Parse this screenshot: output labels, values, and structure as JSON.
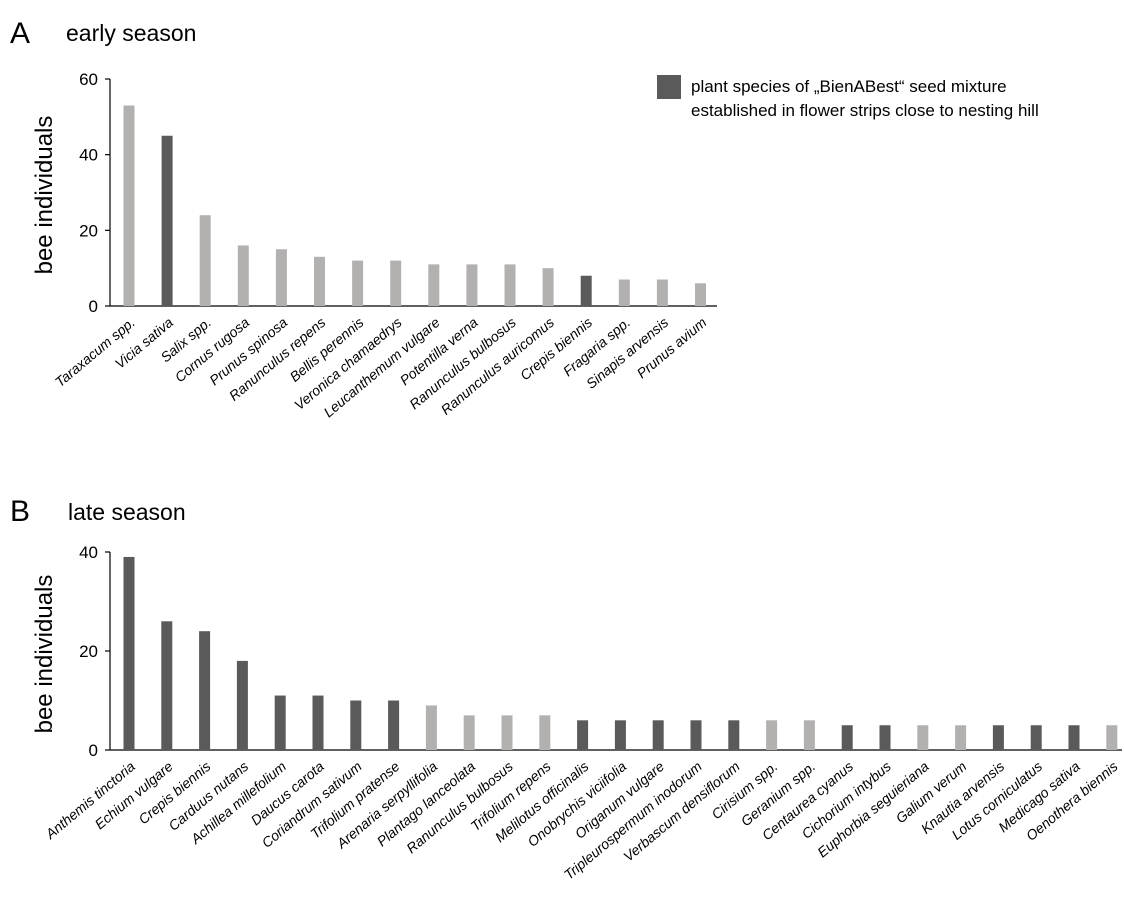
{
  "legend": {
    "line1": "plant species of „BienABest“ seed mixture",
    "line2": "established in flower strips close to nesting hill"
  },
  "colors": {
    "seed_mixture": "#5a5a5a",
    "other": "#b3b0b0",
    "axis": "#000000"
  },
  "chart_data": [
    {
      "type": "bar",
      "panel_label": "A",
      "title": "early season",
      "ylabel": "bee individuals",
      "xlabel": "",
      "ylim": [
        0,
        60
      ],
      "yticks": [
        0,
        20,
        40,
        60
      ],
      "grid": false,
      "legend_position": "top-right",
      "categories": [
        "Taraxacum spp.",
        "Vicia sativa",
        "Salix spp.",
        "Cornus rugosa",
        "Prunus spinosa",
        "Ranunculus repens",
        "Bellis perennis",
        "Veronica chamaedrys",
        "Leucanthemum vulgare",
        "Potentilla verna",
        "Ranunculus bulbosus",
        "Ranunculus auricomus",
        "Crepis biennis",
        "Fragaria spp.",
        "Sinapis arvensis",
        "Prunus avium"
      ],
      "values": [
        53,
        45,
        24,
        16,
        15,
        13,
        12,
        12,
        11,
        11,
        11,
        10,
        8,
        7,
        7,
        6
      ],
      "seed_mixture": [
        false,
        true,
        false,
        false,
        false,
        false,
        false,
        false,
        false,
        false,
        false,
        false,
        true,
        false,
        false,
        false
      ]
    },
    {
      "type": "bar",
      "panel_label": "B",
      "title": "late season",
      "ylabel": "bee individuals",
      "xlabel": "",
      "ylim": [
        0,
        40
      ],
      "yticks": [
        0,
        20,
        40
      ],
      "grid": false,
      "categories": [
        "Anthemis tinctoria",
        "Echium vulgare",
        "Crepis biennis",
        "Carduus nutans",
        "Achillea millefolium",
        "Daucus carota",
        "Coriandrum sativum",
        "Trifolium pratense",
        "Arenaria serpyllifolia",
        "Plantago lanceolata",
        "Ranunculus bulbosus",
        "Trifolium repens",
        "Melilotus officinalis",
        "Onobrychis viciifolia",
        "Origanum vulgare",
        "Tripleurospermum inodorum",
        "Verbascum densiflorum",
        "Cirisium spp.",
        "Geranium spp.",
        "Centaurea cyanus",
        "Cichorium intybus",
        "Euphorbia seguieriana",
        "Galium verum",
        "Knautia arvensis",
        "Lotus corniculatus",
        "Medicago sativa",
        "Oenothera biennis"
      ],
      "values": [
        39,
        26,
        24,
        18,
        11,
        11,
        10,
        10,
        9,
        7,
        7,
        7,
        6,
        6,
        6,
        6,
        6,
        6,
        6,
        5,
        5,
        5,
        5,
        5,
        5,
        5,
        5
      ],
      "seed_mixture": [
        true,
        true,
        true,
        true,
        true,
        true,
        true,
        true,
        false,
        false,
        false,
        false,
        true,
        true,
        true,
        true,
        true,
        false,
        false,
        true,
        true,
        false,
        false,
        true,
        true,
        true,
        false
      ]
    }
  ]
}
